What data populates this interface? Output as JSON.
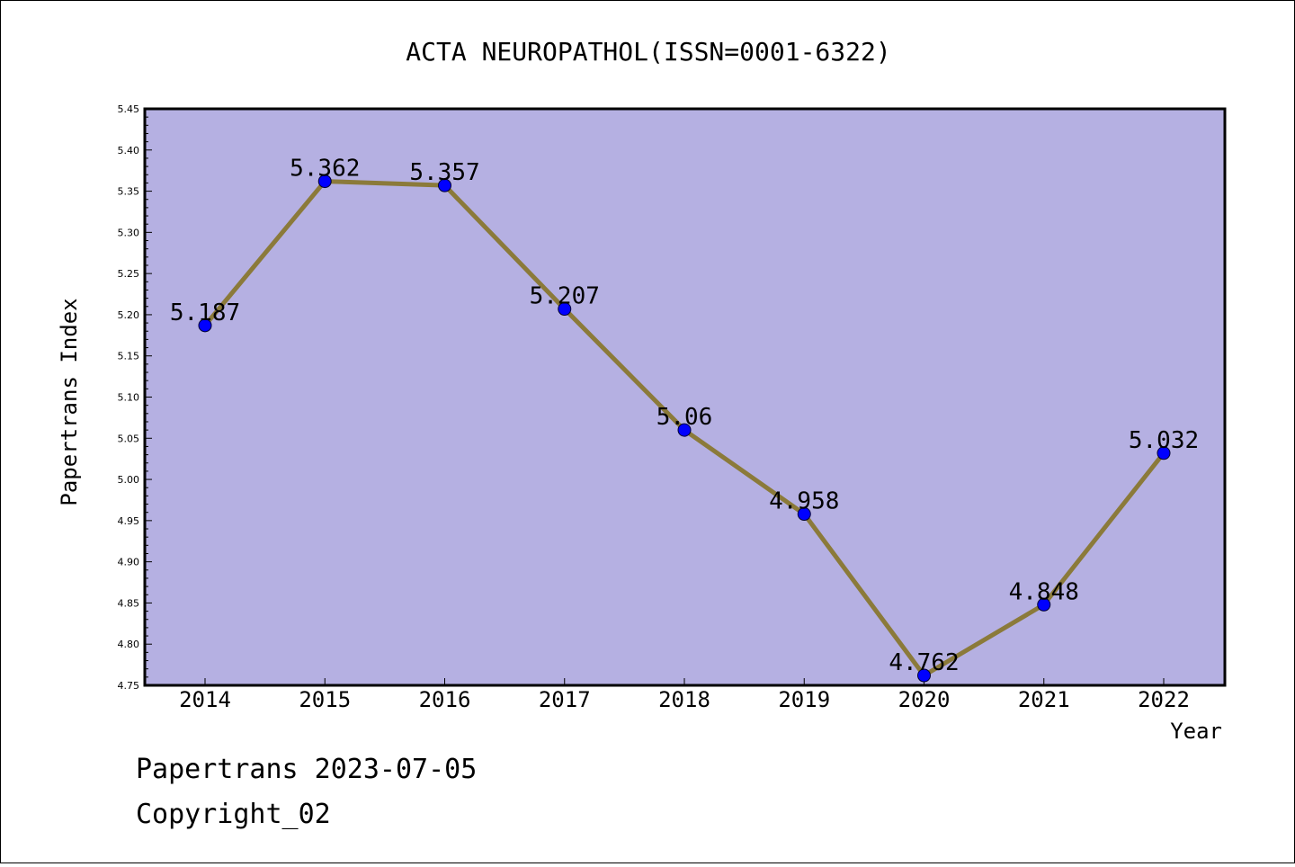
{
  "chart_data": {
    "type": "line",
    "title": "ACTA NEUROPATHOL(ISSN=0001-6322)",
    "xlabel": "Year",
    "ylabel": "Papertrans Index",
    "categories": [
      "2014",
      "2015",
      "2016",
      "2017",
      "2018",
      "2019",
      "2020",
      "2021",
      "2022"
    ],
    "series": [
      {
        "values": [
          5.187,
          5.362,
          5.357,
          5.207,
          5.06,
          4.958,
          4.762,
          4.848,
          5.032
        ],
        "labels": [
          "5.187",
          "5.362",
          "5.357",
          "5.207",
          "5.06",
          "4.958",
          "4.762",
          "4.848",
          "5.032"
        ]
      }
    ],
    "ylim": [
      4.75,
      5.45
    ],
    "yticks": [
      "4.75",
      "4.80",
      "4.85",
      "4.90",
      "4.95",
      "5.00",
      "5.05",
      "5.10",
      "5.15",
      "5.20",
      "5.25",
      "5.30",
      "5.35",
      "5.40",
      "5.45"
    ],
    "grid": false,
    "colors": {
      "plot_background": "#b5b0e2",
      "line": "#8b7a3a",
      "marker": "#0000ff"
    }
  },
  "footer": {
    "line1": "Papertrans 2023-07-05",
    "line2": "Copyright_02"
  }
}
